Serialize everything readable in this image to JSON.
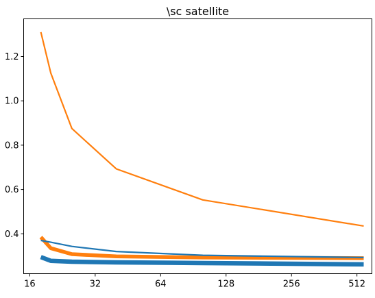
{
  "chart_data": {
    "type": "line",
    "title": "\\sc satellite",
    "xlabel": "",
    "ylabel": "",
    "xscale": "log2",
    "xlim": [
      15,
      600
    ],
    "ylim": [
      0.22,
      1.37
    ],
    "xticks": [
      16,
      32,
      64,
      128,
      256,
      512
    ],
    "xtick_labels": [
      "16",
      "32",
      "64",
      "128",
      "256",
      "512"
    ],
    "yticks": [
      0.4,
      0.6,
      0.8,
      1.0,
      1.2
    ],
    "ytick_labels": [
      "0.4",
      "0.6",
      "0.8",
      "1.0",
      "1.2"
    ],
    "grid": false,
    "x": [
      18,
      20,
      25,
      40,
      100,
      550
    ],
    "series": [
      {
        "color": "#ff7f0e",
        "width": 2.2,
        "values": [
          1.31,
          1.125,
          0.875,
          0.693,
          0.553,
          0.435
        ]
      },
      {
        "color": "#ff7f0e",
        "width": 5.5,
        "values": [
          0.385,
          0.335,
          0.308,
          0.298,
          0.293,
          0.29
        ]
      },
      {
        "color": "#1f77b4",
        "width": 2.2,
        "values": [
          0.37,
          0.362,
          0.343,
          0.32,
          0.303,
          0.293
        ]
      },
      {
        "color": "#1f77b4",
        "width": 6.5,
        "values": [
          0.295,
          0.278,
          0.274,
          0.271,
          0.268,
          0.262
        ]
      }
    ]
  }
}
